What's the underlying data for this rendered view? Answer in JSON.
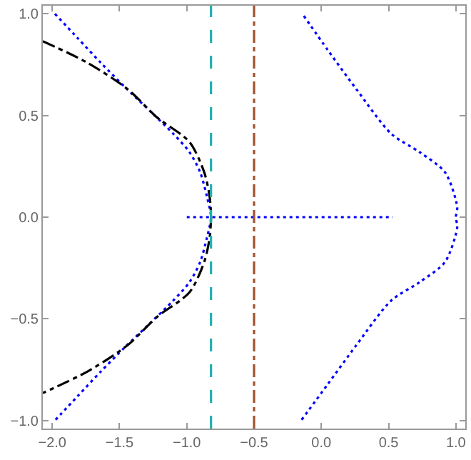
{
  "chart_data": {
    "type": "line",
    "xlim": [
      -2.07,
      1.07
    ],
    "ylim": [
      -1.04,
      1.04
    ],
    "xticks": [
      {
        "value": -2.0,
        "label": "−2.0"
      },
      {
        "value": -1.5,
        "label": "−1.5"
      },
      {
        "value": -1.0,
        "label": "−1.0"
      },
      {
        "value": -0.5,
        "label": "−0.5"
      },
      {
        "value": 0.0,
        "label": "0.0"
      },
      {
        "value": 0.5,
        "label": "0.5"
      },
      {
        "value": 1.0,
        "label": "1.0"
      }
    ],
    "yticks": [
      {
        "value": -1.0,
        "label": "−1.0"
      },
      {
        "value": -0.5,
        "label": "−0.5"
      },
      {
        "value": 0.0,
        "label": "0.0"
      },
      {
        "value": 0.5,
        "label": "0.5"
      },
      {
        "value": 1.0,
        "label": "1.0"
      }
    ],
    "marker": "none",
    "series": [
      {
        "color": "#0000ff",
        "line_style": "dotted",
        "x": [
          -1.98,
          -1.81,
          -1.64,
          -1.46,
          -1.27,
          -1.1,
          -0.98,
          -0.9,
          -0.85,
          -0.82,
          -0.85,
          -0.9,
          -0.98,
          -1.1,
          -1.27,
          -1.46,
          -1.64,
          -1.81,
          -1.98
        ],
        "values": [
          1.0,
          0.88,
          0.76,
          0.64,
          0.52,
          0.41,
          0.32,
          0.22,
          0.1,
          0.0,
          -0.1,
          -0.22,
          -0.32,
          -0.41,
          -0.52,
          -0.64,
          -0.76,
          -0.88,
          -1.0
        ]
      },
      {
        "color": "#0000ff",
        "line_style": "dotted",
        "x": [
          -0.13,
          0.05,
          0.26,
          0.52,
          0.73,
          0.92,
          1.01,
          1.0,
          1.01,
          0.92,
          0.73,
          0.52,
          0.26,
          0.05,
          -0.15
        ],
        "values": [
          0.99,
          0.82,
          0.63,
          0.41,
          0.32,
          0.22,
          0.05,
          0.0,
          -0.05,
          -0.22,
          -0.32,
          -0.41,
          -0.63,
          -0.82,
          -1.0
        ]
      },
      {
        "color": "#0000ff",
        "line_style": "dotted",
        "x": [
          -1.0,
          0.53
        ],
        "values": [
          0.0,
          0.0
        ]
      },
      {
        "color": "#000000",
        "line_style": "dashdot",
        "x": [
          -2.07,
          -1.74,
          -1.44,
          -1.22,
          -0.98,
          -0.87,
          -0.83,
          -0.82,
          -0.83,
          -0.87,
          -0.98,
          -1.22,
          -1.44,
          -1.74,
          -2.07
        ],
        "values": [
          0.865,
          0.76,
          0.63,
          0.49,
          0.37,
          0.22,
          0.1,
          0.0,
          -0.1,
          -0.22,
          -0.37,
          -0.49,
          -0.63,
          -0.76,
          -0.865
        ]
      }
    ],
    "ref_lines": [
      {
        "axis": "x",
        "value": -0.82,
        "color": "#20b0b0",
        "line_style": "dashed"
      },
      {
        "axis": "x",
        "value": -0.5,
        "color": "#a0522d",
        "line_style": "dashdot"
      }
    ]
  }
}
